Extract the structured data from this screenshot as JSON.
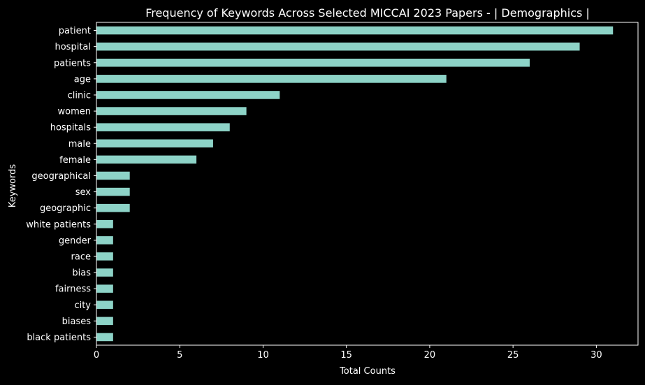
{
  "chart_data": {
    "type": "bar",
    "orientation": "horizontal",
    "title": "Frequency of Keywords Across Selected MICCAI 2023 Papers - | Demographics |",
    "xlabel": "Total Counts",
    "ylabel": "Keywords",
    "xlim": [
      0,
      32.5
    ],
    "xticks": [
      0,
      5,
      10,
      15,
      20,
      25,
      30
    ],
    "grid": false,
    "legend": "none",
    "colors": {
      "background": "#000000",
      "bar": "#8dd3c7",
      "axis": "#ffffff",
      "text": "#ffffff"
    },
    "categories": [
      "patient",
      "hospital",
      "patients",
      "age",
      "clinic",
      "women",
      "hospitals",
      "male",
      "female",
      "geographical",
      "sex",
      "geographic",
      "white patients",
      "gender",
      "race",
      "bias",
      "fairness",
      "city",
      "biases",
      "black patients"
    ],
    "values": [
      31,
      29,
      26,
      21,
      11,
      9,
      8,
      7,
      6,
      2,
      2,
      2,
      1,
      1,
      1,
      1,
      1,
      1,
      1,
      1
    ]
  }
}
